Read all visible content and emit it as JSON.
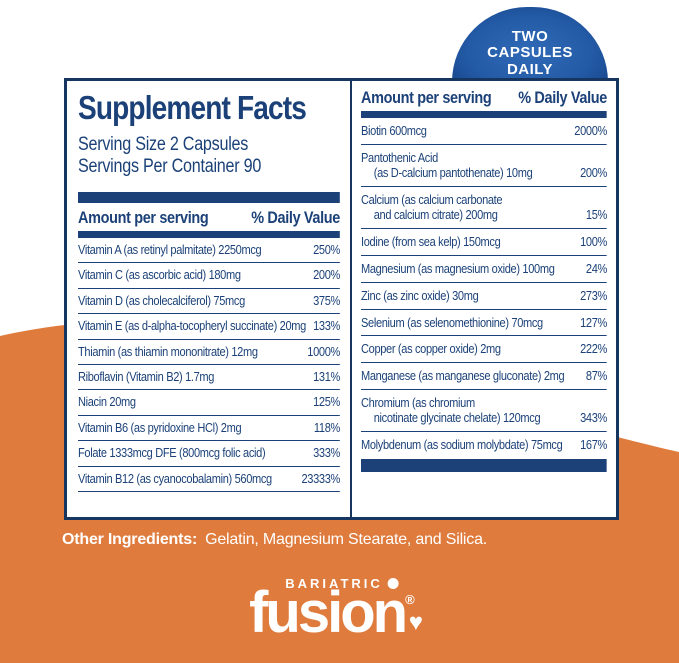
{
  "colors": {
    "navy": "#1b4178",
    "orange": "#df7b3c",
    "badge_blue": "#245ba7"
  },
  "badge": {
    "line1": "TWO",
    "line2": "CAPSULES",
    "line3": "DAILY"
  },
  "facts": {
    "title": "Supplement Facts",
    "serving_size": "Serving Size 2 Capsules",
    "servings_per_container": "Servings Per Container 90",
    "amount_header": "Amount per serving",
    "dv_header": "% Daily Value",
    "left_rows": [
      {
        "name": "Vitamin A (as retinyl palmitate) 2250mcg",
        "dv": "250%"
      },
      {
        "name": "Vitamin C (as ascorbic acid) 180mg",
        "dv": "200%"
      },
      {
        "name": "Vitamin D (as cholecalciferol) 75mcg",
        "dv": "375%"
      },
      {
        "name": "Vitamin E (as d-alpha-tocopheryl succinate) 20mg",
        "dv": "133%"
      },
      {
        "name": "Thiamin (as thiamin mononitrate) 12mg",
        "dv": "1000%"
      },
      {
        "name": "Riboflavin (Vitamin B2) 1.7mg",
        "dv": "131%"
      },
      {
        "name": "Niacin 20mg",
        "dv": "125%"
      },
      {
        "name": "Vitamin B6 (as pyridoxine HCl) 2mg",
        "dv": "118%"
      },
      {
        "name": "Folate 1333mcg DFE (800mcg folic acid)",
        "dv": "333%"
      },
      {
        "name": "Vitamin B12 (as cyanocobalamin) 560mcg",
        "dv": "23333%"
      }
    ],
    "right_rows": [
      {
        "line1": "Biotin 600mcg",
        "line2": "",
        "dv": "2000%"
      },
      {
        "line1": "Pantothenic Acid",
        "line2": "(as D-calcium pantothenate) 10mg",
        "dv": "200%"
      },
      {
        "line1": "Calcium (as calcium carbonate",
        "line2": "and calcium citrate) 200mg",
        "dv": "15%"
      },
      {
        "line1": "Iodine (from sea kelp) 150mcg",
        "line2": "",
        "dv": "100%"
      },
      {
        "line1": "Magnesium (as magnesium oxide) 100mg",
        "line2": "",
        "dv": "24%"
      },
      {
        "line1": "Zinc (as zinc oxide) 30mg",
        "line2": "",
        "dv": "273%"
      },
      {
        "line1": "Selenium (as selenomethionine) 70mcg",
        "line2": "",
        "dv": "127%"
      },
      {
        "line1": "Copper (as copper oxide) 2mg",
        "line2": "",
        "dv": "222%"
      },
      {
        "line1": "Manganese (as manganese gluconate) 2mg",
        "line2": "",
        "dv": "87%"
      },
      {
        "line1": "Chromium (as chromium",
        "line2": "nicotinate glycinate chelate) 120mcg",
        "dv": "343%"
      },
      {
        "line1": "Molybdenum (as sodium molybdate) 75mcg",
        "line2": "",
        "dv": "167%"
      }
    ]
  },
  "other_ingredients": {
    "label": "Other Ingredients:",
    "text": "Gelatin, Magnesium Stearate, and Silica."
  },
  "logo": {
    "top": "BARIATRIC",
    "main": "fusion",
    "registered": "®",
    "heart": "♥"
  }
}
